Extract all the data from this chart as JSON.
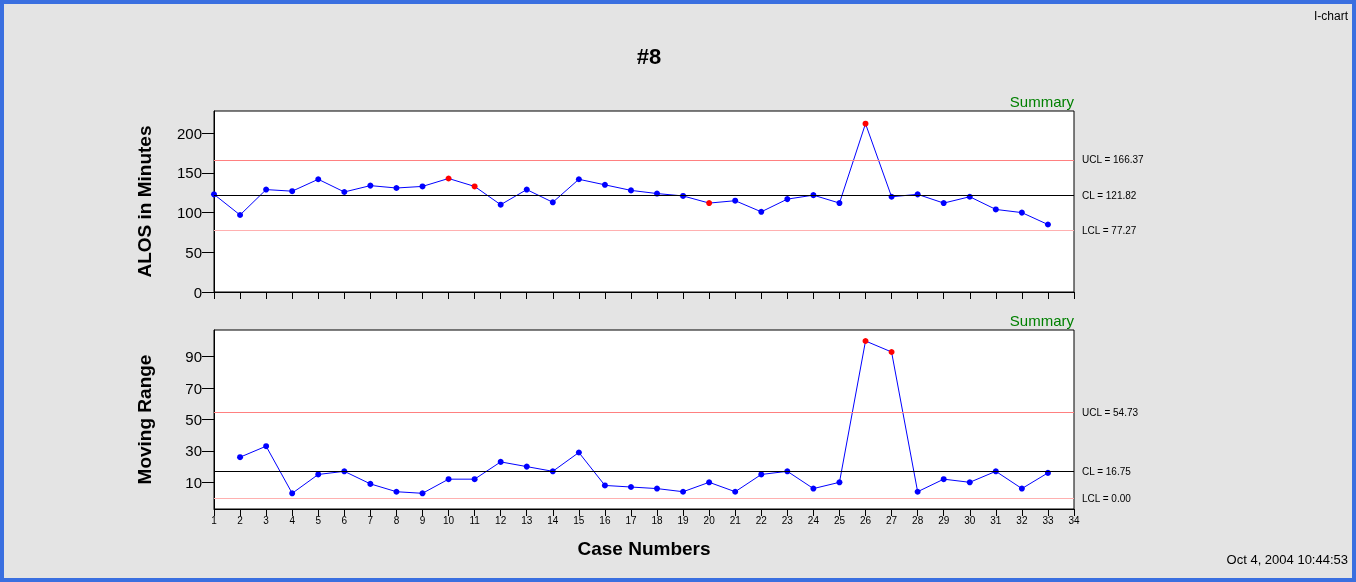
{
  "chart_data": [
    {
      "type": "line",
      "title": "#8",
      "ylabel": "ALOS in Minutes",
      "annotations": [
        "Summary",
        "I-chart"
      ],
      "xlim": [
        1,
        34
      ],
      "xticks": [
        1,
        2,
        3,
        4,
        5,
        6,
        7,
        8,
        9,
        10,
        11,
        12,
        13,
        14,
        15,
        16,
        17,
        18,
        19,
        20,
        21,
        22,
        23,
        24,
        25,
        26,
        27,
        28,
        29,
        30,
        31,
        32,
        33,
        34
      ],
      "ylim": [
        0,
        228
      ],
      "yticks": [
        0,
        50,
        100,
        150,
        200
      ],
      "tick_labels": "y",
      "grid": false,
      "marker": "circle",
      "line_style": "solid",
      "series": [
        {
          "color": "#0000ff",
          "x": [
            1,
            2,
            3,
            4,
            5,
            6,
            7,
            8,
            9,
            10,
            11,
            12,
            13,
            14,
            15,
            16,
            17,
            18,
            19,
            20,
            21,
            22,
            23,
            24,
            25,
            26,
            27,
            28,
            29,
            30,
            31,
            32,
            33
          ],
          "values": [
            123,
            97,
            129,
            127,
            142,
            126,
            134,
            131,
            133,
            143,
            133,
            110,
            129,
            113,
            142,
            135,
            128,
            124,
            121,
            112,
            115,
            101,
            117,
            122,
            112,
            212,
            120,
            123,
            112,
            120,
            104,
            100,
            85
          ],
          "colors": [
            "#0000ff",
            "#0000ff",
            "#0000ff",
            "#0000ff",
            "#0000ff",
            "#0000ff",
            "#0000ff",
            "#0000ff",
            "#0000ff",
            "#ff0000",
            "#ff0000",
            "#0000ff",
            "#0000ff",
            "#0000ff",
            "#0000ff",
            "#0000ff",
            "#0000ff",
            "#0000ff",
            "#0000ff",
            "#ff0000",
            "#0000ff",
            "#0000ff",
            "#0000ff",
            "#0000ff",
            "#0000ff",
            "#ff0000",
            "#0000ff",
            "#0000ff",
            "#0000ff",
            "#0000ff",
            "#0000ff",
            "#0000ff",
            "#0000ff"
          ]
        }
      ],
      "ref_lines": [
        {
          "axis": "y",
          "value": 166.37,
          "label": "UCL = 166.37",
          "color": "#ff8080"
        },
        {
          "axis": "y",
          "value": 121.82,
          "label": "CL = 121.82",
          "color": "#000000"
        },
        {
          "axis": "y",
          "value": 77.27,
          "label": "LCL = 77.27",
          "color": "#ffb0b0"
        }
      ]
    },
    {
      "type": "line",
      "xlabel": "Case Numbers",
      "ylabel": "Moving Range",
      "annotations": [
        "Summary",
        "Oct 4, 2004 10:44:53"
      ],
      "xlim": [
        1,
        34
      ],
      "xticks": [
        1,
        2,
        3,
        4,
        5,
        6,
        7,
        8,
        9,
        10,
        11,
        12,
        13,
        14,
        15,
        16,
        17,
        18,
        19,
        20,
        21,
        22,
        23,
        24,
        25,
        26,
        27,
        28,
        29,
        30,
        31,
        32,
        33,
        34
      ],
      "ylim": [
        -7,
        107
      ],
      "yticks": [
        10,
        30,
        50,
        70,
        90
      ],
      "grid": false,
      "marker": "circle",
      "line_style": "solid",
      "series": [
        {
          "color": "#0000ff",
          "x": [
            2,
            3,
            4,
            5,
            6,
            7,
            8,
            9,
            10,
            11,
            12,
            13,
            14,
            15,
            16,
            17,
            18,
            19,
            20,
            21,
            22,
            23,
            24,
            25,
            26,
            27,
            28,
            29,
            30,
            31,
            32,
            33
          ],
          "values": [
            26,
            33,
            3,
            15,
            17,
            9,
            4,
            3,
            12,
            12,
            23,
            20,
            17,
            29,
            8,
            7,
            6,
            4,
            10,
            4,
            15,
            17,
            6,
            10,
            100,
            93,
            4,
            12,
            10,
            17,
            6,
            16
          ],
          "colors": [
            "#0000ff",
            "#0000ff",
            "#0000ff",
            "#0000ff",
            "#0000ff",
            "#0000ff",
            "#0000ff",
            "#0000ff",
            "#0000ff",
            "#0000ff",
            "#0000ff",
            "#0000ff",
            "#0000ff",
            "#0000ff",
            "#0000ff",
            "#0000ff",
            "#0000ff",
            "#0000ff",
            "#0000ff",
            "#0000ff",
            "#0000ff",
            "#0000ff",
            "#0000ff",
            "#0000ff",
            "#ff0000",
            "#ff0000",
            "#0000ff",
            "#0000ff",
            "#0000ff",
            "#0000ff",
            "#0000ff",
            "#0000ff"
          ]
        }
      ],
      "ref_lines": [
        {
          "axis": "y",
          "value": 54.73,
          "label": "UCL = 54.73",
          "color": "#ff8080"
        },
        {
          "axis": "y",
          "value": 16.75,
          "label": "CL = 16.75",
          "color": "#000000"
        },
        {
          "axis": "y",
          "value": 0,
          "label": "LCL = 0.00",
          "color": "#ffb0b0"
        }
      ]
    }
  ]
}
